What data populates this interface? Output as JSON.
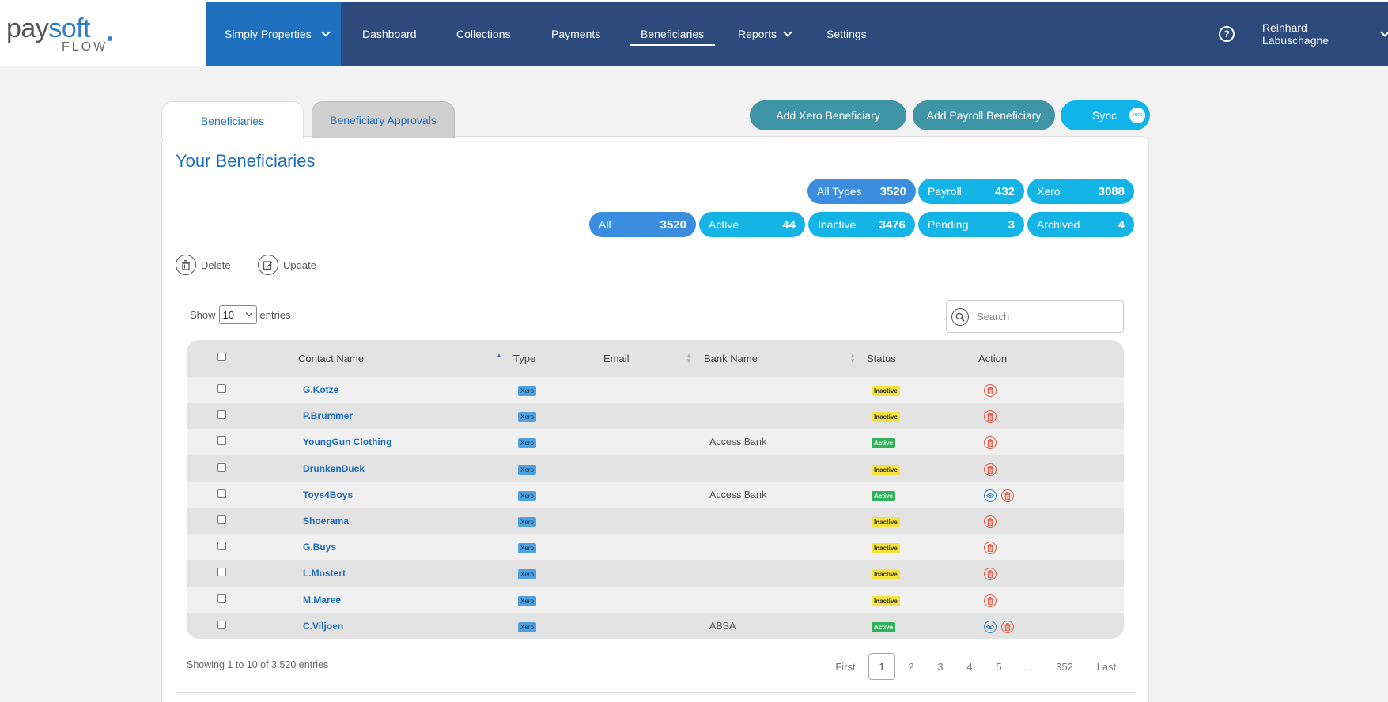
{
  "logo": {
    "pay": "pay",
    "soft": "soft",
    "flow": "FLOW"
  },
  "nav": {
    "company": "Simply Properties",
    "links": [
      "Dashboard",
      "Collections",
      "Payments",
      "Beneficiaries",
      "Reports",
      "Settings"
    ],
    "active": "Beneficiaries",
    "help": "?",
    "user": "Reinhard Labuschagne"
  },
  "tabs": [
    "Beneficiaries",
    "Beneficiary Approvals"
  ],
  "buttons": {
    "add_xero": "Add Xero Beneficiary",
    "add_payroll": "Add Payroll Beneficiary",
    "sync": "Sync",
    "xero_mark": "xero"
  },
  "title": "Your Beneficiaries",
  "type_filters": [
    {
      "label": "All Types",
      "count": "3520"
    },
    {
      "label": "Payroll",
      "count": "432"
    },
    {
      "label": "Xero",
      "count": "3088"
    }
  ],
  "status_filters": [
    {
      "label": "All",
      "count": "3520"
    },
    {
      "label": "Active",
      "count": "44"
    },
    {
      "label": "Inactive",
      "count": "3476"
    },
    {
      "label": "Pending",
      "count": "3"
    },
    {
      "label": "Archived",
      "count": "4"
    }
  ],
  "actions": {
    "delete": "Delete",
    "update": "Update"
  },
  "length": {
    "show": "Show",
    "value": "10",
    "entries": "entries"
  },
  "search": {
    "placeholder": "Search"
  },
  "columns": [
    "Contact Name",
    "Type",
    "Email",
    "Bank Name",
    "Status",
    "Action"
  ],
  "rows": [
    {
      "name": "G.Kotze",
      "type": "Xero",
      "email": "",
      "bank": "",
      "status": "Inactive",
      "view": false
    },
    {
      "name": "P.Brummer",
      "type": "Xero",
      "email": "",
      "bank": "",
      "status": "Inactive",
      "view": false
    },
    {
      "name": "YoungGun Clothing",
      "type": "Xero",
      "email": "",
      "bank": "Access Bank",
      "status": "Active",
      "view": false
    },
    {
      "name": "DrunkenDuck",
      "type": "Xero",
      "email": "",
      "bank": "",
      "status": "Inactive",
      "view": false
    },
    {
      "name": "Toys4Boys",
      "type": "Xero",
      "email": "",
      "bank": "Access Bank",
      "status": "Active",
      "view": true
    },
    {
      "name": "Shoerama",
      "type": "Xero",
      "email": "",
      "bank": "",
      "status": "Inactive",
      "view": false
    },
    {
      "name": "G.Buys",
      "type": "Xero",
      "email": "",
      "bank": "",
      "status": "Inactive",
      "view": false
    },
    {
      "name": "L.Mostert",
      "type": "Xero",
      "email": "",
      "bank": "",
      "status": "Inactive",
      "view": false
    },
    {
      "name": "M.Maree",
      "type": "Xero",
      "email": "",
      "bank": "",
      "status": "Inactive",
      "view": false
    },
    {
      "name": "C.Viljoen",
      "type": "Xero",
      "email": "",
      "bank": "ABSA",
      "status": "Active",
      "view": true
    }
  ],
  "info": "Showing 1 to 10 of 3,520 entries",
  "pagination": [
    "First",
    "1",
    "2",
    "3",
    "4",
    "5",
    "…",
    "352",
    "Last"
  ],
  "current_page": "1",
  "colors": {
    "nav": "#2c4a7c",
    "company": "#1f6fbf",
    "pill_blue": "#3b8de0",
    "pill_cyan": "#14b4e6",
    "teal_button": "#3f94a6",
    "active": "#2eb35a",
    "inactive": "#f6e23d",
    "trash": "#e0533d"
  }
}
